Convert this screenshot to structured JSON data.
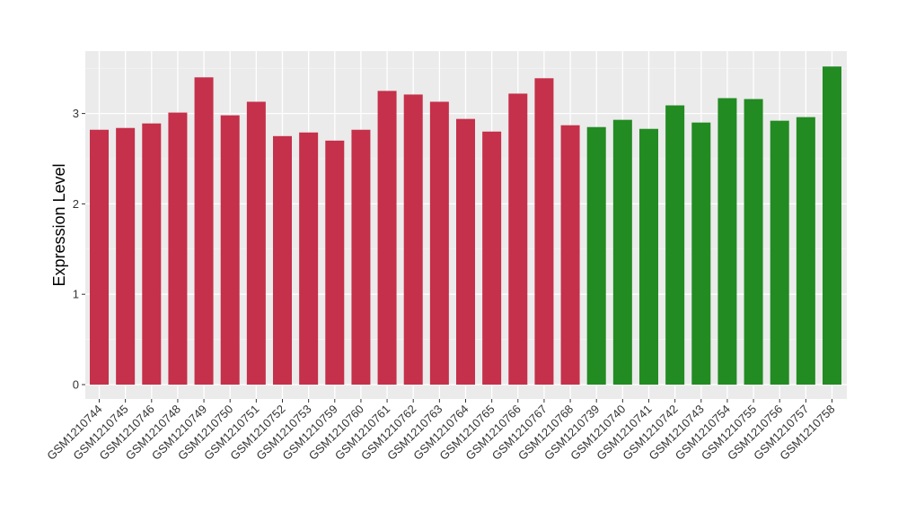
{
  "chart_data": {
    "type": "bar",
    "ylabel": "Expression Level",
    "xlabel": "",
    "title": "",
    "ylim": [
      0,
      3.6
    ],
    "yticks": [
      0,
      1,
      2,
      3
    ],
    "grid": true,
    "panel_background": "#ebebeb",
    "colors": {
      "group_1": "#c5304a",
      "group_2": "#228b22"
    },
    "categories": [
      "GSM1210744",
      "GSM1210745",
      "GSM1210746",
      "GSM1210748",
      "GSM1210749",
      "GSM1210750",
      "GSM1210751",
      "GSM1210752",
      "GSM1210753",
      "GSM1210759",
      "GSM1210760",
      "GSM1210761",
      "GSM1210762",
      "GSM1210763",
      "GSM1210764",
      "GSM1210765",
      "GSM1210766",
      "GSM1210767",
      "GSM1210768",
      "GSM1210739",
      "GSM1210740",
      "GSM1210741",
      "GSM1210742",
      "GSM1210743",
      "GSM1210754",
      "GSM1210755",
      "GSM1210756",
      "GSM1210757",
      "GSM1210758"
    ],
    "values": [
      2.82,
      2.84,
      2.89,
      3.01,
      3.4,
      2.98,
      3.13,
      2.75,
      2.79,
      2.7,
      2.82,
      3.25,
      3.21,
      3.13,
      2.94,
      2.8,
      3.22,
      3.39,
      2.87,
      2.85,
      2.93,
      2.83,
      3.09,
      2.9,
      3.17,
      3.16,
      2.92,
      2.96,
      3.52
    ],
    "groups": [
      "group_1",
      "group_1",
      "group_1",
      "group_1",
      "group_1",
      "group_1",
      "group_1",
      "group_1",
      "group_1",
      "group_1",
      "group_1",
      "group_1",
      "group_1",
      "group_1",
      "group_1",
      "group_1",
      "group_1",
      "group_1",
      "group_1",
      "group_2",
      "group_2",
      "group_2",
      "group_2",
      "group_2",
      "group_2",
      "group_2",
      "group_2",
      "group_2",
      "group_2"
    ]
  }
}
